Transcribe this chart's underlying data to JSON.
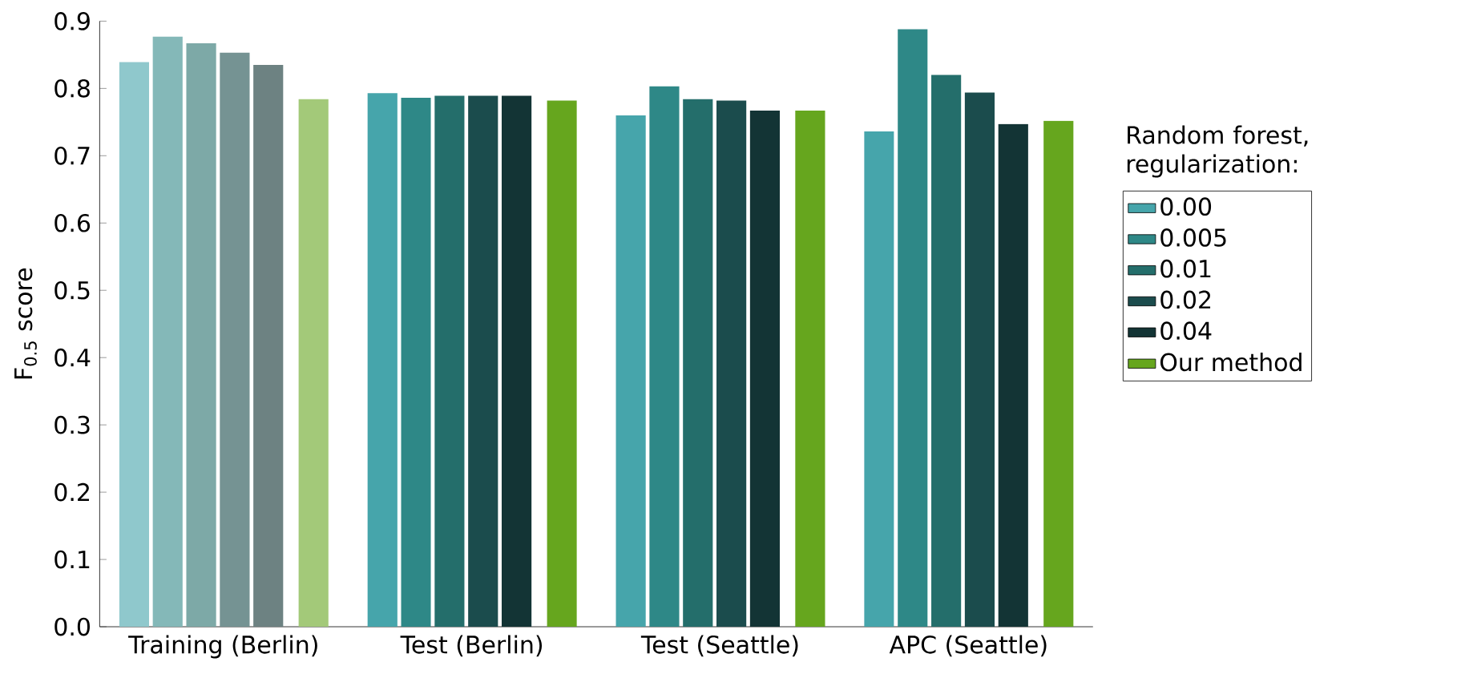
{
  "chart_data": {
    "type": "bar",
    "ylabel": "F$_{0.5}$ score",
    "legend_title": "Random forest, regularization:",
    "categories": [
      "Training (Berlin)",
      "Test (Berlin)",
      "Test (Seattle)",
      "APC (Seattle)"
    ],
    "series": [
      {
        "name": "0.00",
        "color": "#46a5ab",
        "colors": [
          "#8fc8cc",
          "#46a5ab",
          "#46a5ab",
          "#46a5ab"
        ],
        "values": [
          0.839,
          0.793,
          0.76,
          0.736
        ]
      },
      {
        "name": "0.005",
        "color": "#2e8887",
        "colors": [
          "#84b8b8",
          "#2e8887",
          "#2e8887",
          "#2e8887"
        ],
        "values": [
          0.877,
          0.786,
          0.803,
          0.888
        ]
      },
      {
        "name": "0.01",
        "color": "#246e6b",
        "colors": [
          "#7da9a7",
          "#246e6b",
          "#246e6b",
          "#246e6b"
        ],
        "values": [
          0.867,
          0.789,
          0.784,
          0.82
        ]
      },
      {
        "name": "0.02",
        "color": "#1b4c4d",
        "colors": [
          "#759393",
          "#1b4c4d",
          "#1b4c4d",
          "#1b4c4d"
        ],
        "values": [
          0.853,
          0.789,
          0.782,
          0.794
        ]
      },
      {
        "name": "0.04",
        "color": "#133435",
        "colors": [
          "#6d8282",
          "#133435",
          "#133435",
          "#133435"
        ],
        "values": [
          0.835,
          0.789,
          0.767,
          0.747
        ]
      },
      {
        "name": "Our method",
        "color": "#66a61e",
        "colors": [
          "#a3c979",
          "#66a61e",
          "#66a61e",
          "#66a61e"
        ],
        "values": [
          0.784,
          0.782,
          0.767,
          0.752
        ]
      }
    ],
    "ylim": [
      0.0,
      0.9
    ],
    "yticks": [
      {
        "value": 0.0,
        "label": "0.0"
      },
      0.1,
      0.2,
      0.3,
      0.4,
      0.5,
      0.6,
      0.7,
      0.8,
      0.9
    ],
    "legend": "right",
    "grid": false
  }
}
